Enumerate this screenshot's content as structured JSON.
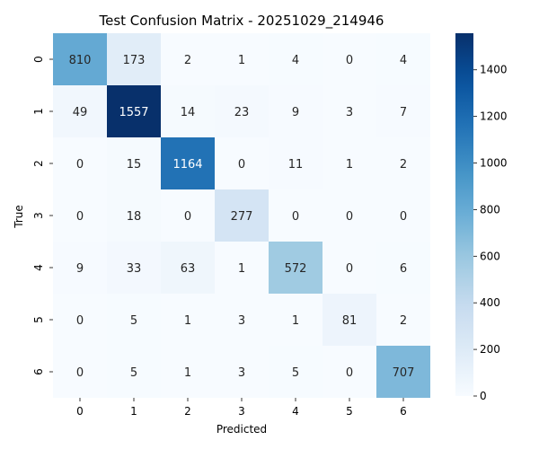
{
  "chart_data": {
    "type": "heatmap",
    "title": "Test Confusion Matrix - 20251029_214946",
    "xlabel": "Predicted",
    "ylabel": "True",
    "x_categories": [
      "0",
      "1",
      "2",
      "3",
      "4",
      "5",
      "6"
    ],
    "y_categories": [
      "0",
      "1",
      "2",
      "3",
      "4",
      "5",
      "6"
    ],
    "values": [
      [
        810,
        173,
        2,
        1,
        4,
        0,
        4
      ],
      [
        49,
        1557,
        14,
        23,
        9,
        3,
        7
      ],
      [
        0,
        15,
        1164,
        0,
        11,
        1,
        2
      ],
      [
        0,
        18,
        0,
        277,
        0,
        0,
        0
      ],
      [
        9,
        33,
        63,
        1,
        572,
        0,
        6
      ],
      [
        0,
        5,
        1,
        3,
        1,
        81,
        2
      ],
      [
        0,
        5,
        1,
        3,
        5,
        0,
        707
      ]
    ],
    "colormap": "Blues",
    "vmin": 0,
    "vmax": 1557,
    "colorbar_ticks": [
      0,
      200,
      400,
      600,
      800,
      1000,
      1200,
      1400
    ]
  }
}
